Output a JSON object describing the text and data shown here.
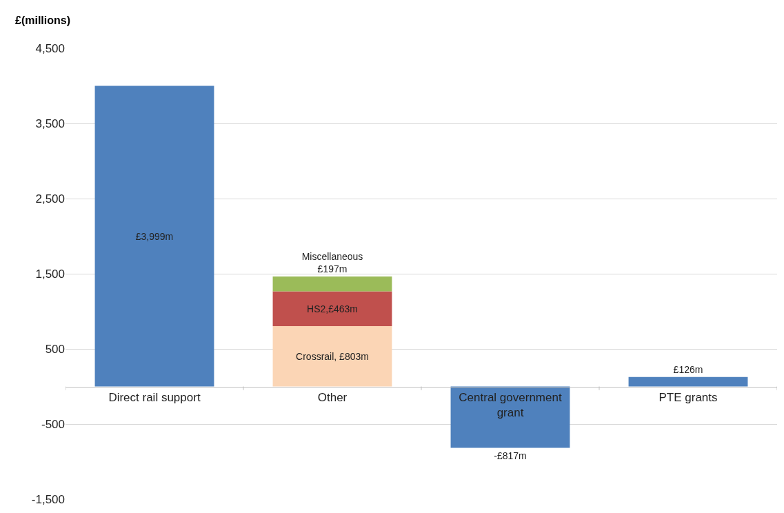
{
  "chart_data": {
    "type": "bar",
    "stacked": true,
    "ylabel": "£(millions)",
    "categories": [
      "Direct rail support",
      "Other",
      "Central government grant",
      "PTE grants"
    ],
    "series": [
      {
        "color": "#4f81bd",
        "values": [
          3999,
          null,
          -817,
          126
        ],
        "value_labels": [
          "£3,999m",
          null,
          "-£817m",
          "£126m"
        ]
      },
      {
        "color": "#fbd5b5",
        "values": [
          null,
          803,
          null,
          null
        ],
        "value_labels": [
          null,
          "Crossrail, £803m",
          null,
          null
        ]
      },
      {
        "color": "#c0504d",
        "values": [
          null,
          463,
          null,
          null
        ],
        "value_labels": [
          null,
          "HS2,£463m",
          null,
          null
        ]
      },
      {
        "color": "#9bbb59",
        "values": [
          null,
          197,
          null,
          null
        ],
        "value_labels": [
          null,
          "Miscellaneous\n£197m",
          null,
          null
        ]
      }
    ],
    "ylim": [
      -1500,
      4500
    ],
    "yticks": [
      {
        "value": -1500,
        "label": "-1,500"
      },
      {
        "value": -500,
        "label": "-500"
      },
      {
        "value": 500,
        "label": "500"
      },
      {
        "value": 1500,
        "label": "1,500"
      },
      {
        "value": 2500,
        "label": "2,500"
      },
      {
        "value": 3500,
        "label": "3,500"
      },
      {
        "value": 4500,
        "label": "4,500"
      }
    ],
    "grid": "y"
  }
}
